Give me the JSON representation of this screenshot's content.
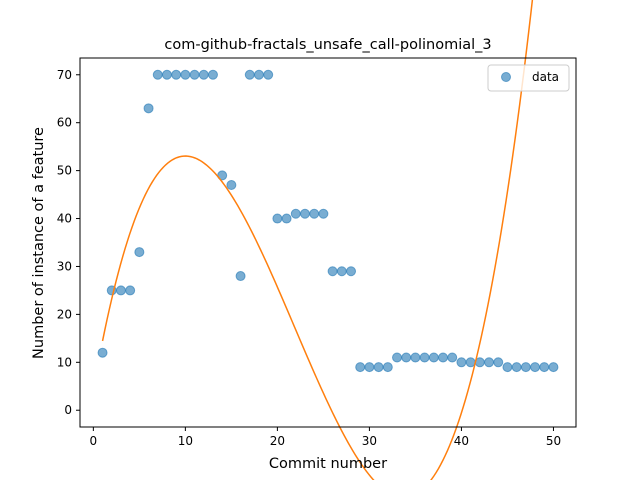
{
  "chart_data": {
    "type": "scatter",
    "title": "com-github-fractals_unsafe_call-polinomial_3",
    "xlabel": "Commit number",
    "ylabel": "Number of instance of a feature",
    "xlim": [
      -1.45,
      52.45
    ],
    "ylim": [
      -3.5,
      73.5
    ],
    "xticks": [
      0,
      10,
      20,
      30,
      40,
      50
    ],
    "yticks": [
      0,
      10,
      20,
      30,
      40,
      50,
      60,
      70
    ],
    "grid": false,
    "legend": {
      "placement": "top-right",
      "entries": [
        "data"
      ]
    },
    "series": [
      {
        "name": "data",
        "type": "scatter",
        "color": "#1f77b4",
        "x": [
          1,
          2,
          3,
          4,
          5,
          6,
          7,
          8,
          9,
          10,
          11,
          12,
          13,
          14,
          15,
          16,
          17,
          18,
          19,
          20,
          21,
          22,
          23,
          24,
          25,
          26,
          27,
          28,
          29,
          30,
          31,
          32,
          33,
          34,
          35,
          36,
          37,
          38,
          39,
          40,
          41,
          42,
          43,
          44,
          45,
          46,
          47,
          48,
          49,
          50
        ],
        "y": [
          12,
          25,
          25,
          25,
          33,
          63,
          70,
          70,
          70,
          70,
          70,
          70,
          70,
          49,
          47,
          28,
          70,
          70,
          70,
          40,
          40,
          41,
          41,
          41,
          41,
          29,
          29,
          29,
          9,
          9,
          9,
          9,
          11,
          11,
          11,
          11,
          11,
          11,
          11,
          10,
          10,
          10,
          10,
          10,
          9,
          9,
          9,
          9,
          9,
          9
        ]
      },
      {
        "type": "line",
        "color": "#ff7f0e",
        "polynomial_coefficients": [
          4.34,
          10.81,
          -0.7009,
          0.01069
        ],
        "x_range": [
          1,
          50
        ]
      }
    ]
  }
}
